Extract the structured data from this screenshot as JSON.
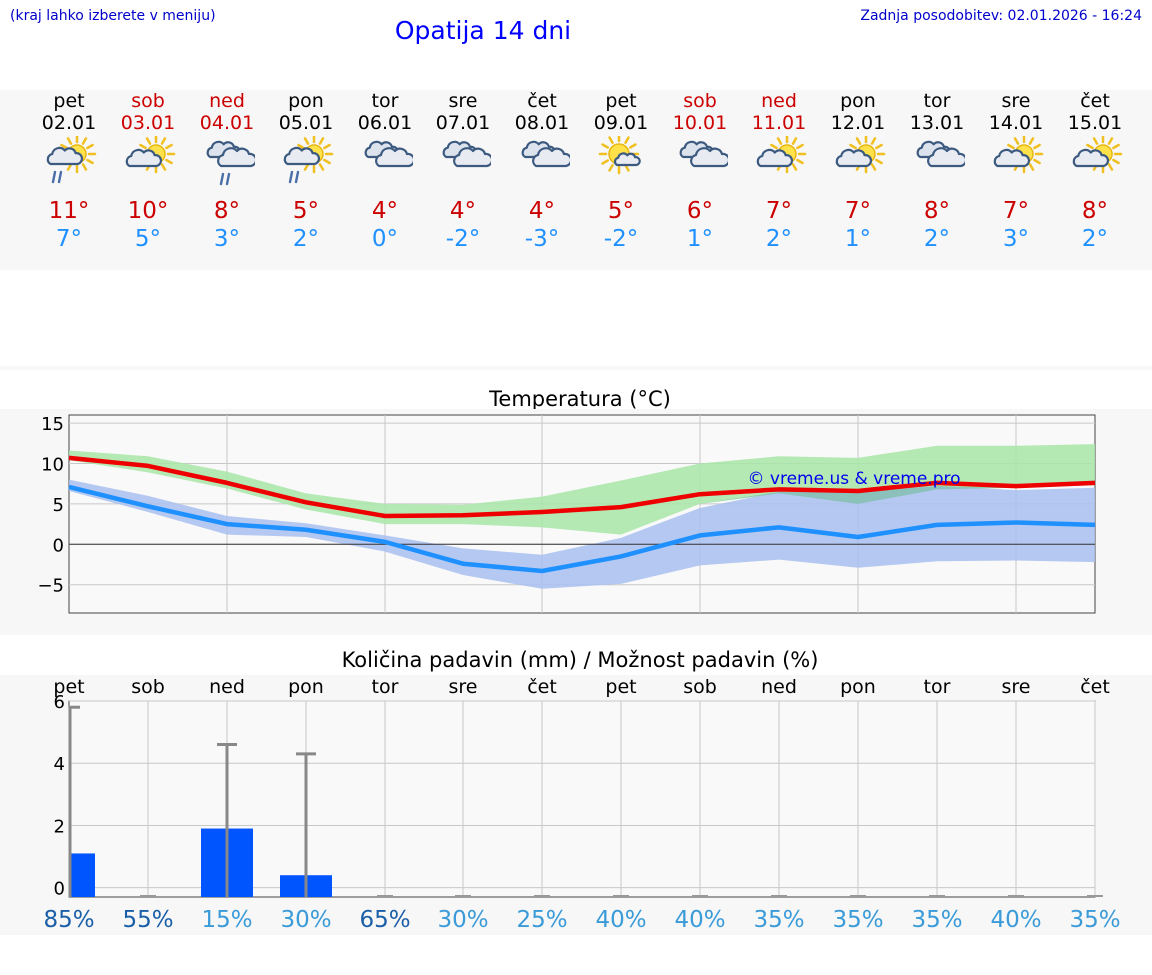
{
  "header": {
    "hint": "(kraj lahko izberete v meniju)",
    "title": "Opatija 14 dni",
    "updated": "Zadnja posodobitev: 02.01.2026 - 16:24"
  },
  "days": [
    {
      "name": "pet",
      "date": "02.01",
      "weekend": false,
      "icon": "partly-sunny-rain-icon",
      "max": "11°",
      "min": "7°"
    },
    {
      "name": "sob",
      "date": "03.01",
      "weekend": true,
      "icon": "partly-sunny-icon",
      "max": "10°",
      "min": "5°"
    },
    {
      "name": "ned",
      "date": "04.01",
      "weekend": true,
      "icon": "cloudy-rain-icon",
      "max": "8°",
      "min": "3°"
    },
    {
      "name": "pon",
      "date": "05.01",
      "weekend": false,
      "icon": "partly-sunny-rain-icon",
      "max": "5°",
      "min": "2°"
    },
    {
      "name": "tor",
      "date": "06.01",
      "weekend": false,
      "icon": "cloudy-icon",
      "max": "4°",
      "min": "0°"
    },
    {
      "name": "sre",
      "date": "07.01",
      "weekend": false,
      "icon": "cloudy-icon",
      "max": "4°",
      "min": "-2°"
    },
    {
      "name": "čet",
      "date": "08.01",
      "weekend": false,
      "icon": "cloudy-icon",
      "max": "4°",
      "min": "-3°"
    },
    {
      "name": "pet",
      "date": "09.01",
      "weekend": false,
      "icon": "mostly-sunny-icon",
      "max": "5°",
      "min": "-2°"
    },
    {
      "name": "sob",
      "date": "10.01",
      "weekend": true,
      "icon": "cloudy-icon",
      "max": "6°",
      "min": "1°"
    },
    {
      "name": "ned",
      "date": "11.01",
      "weekend": true,
      "icon": "partly-sunny-icon",
      "max": "7°",
      "min": "2°"
    },
    {
      "name": "pon",
      "date": "12.01",
      "weekend": false,
      "icon": "partly-sunny-icon",
      "max": "7°",
      "min": "1°"
    },
    {
      "name": "tor",
      "date": "13.01",
      "weekend": false,
      "icon": "cloudy-icon",
      "max": "8°",
      "min": "2°"
    },
    {
      "name": "sre",
      "date": "14.01",
      "weekend": false,
      "icon": "partly-sunny-icon",
      "max": "7°",
      "min": "3°"
    },
    {
      "name": "čet",
      "date": "15.01",
      "weekend": false,
      "icon": "partly-sunny-icon",
      "max": "8°",
      "min": "2°"
    }
  ],
  "colors": {
    "max_line": "#ee0000",
    "min_line": "#1e90ff",
    "max_band": "#a8e6a8",
    "min_band": "#a8c0f0",
    "overlap_band": "#7fbfa8",
    "bar": "#0055ff",
    "err": "#888888",
    "weekend": "#cc0000",
    "pct_dark": "#1a5fa8",
    "pct_light": "#3a9bd8"
  },
  "chart_data": [
    {
      "type": "line",
      "title": "Temperatura (°C)",
      "watermark": "© vreme.us & vreme.pro",
      "ylim": [
        -8.5,
        16
      ],
      "yticks": [
        15,
        10,
        5,
        0,
        -5
      ],
      "ytick_labels": [
        "15",
        "10",
        "5",
        "0",
        "−5"
      ],
      "series": [
        {
          "name": "max",
          "values": [
            10.7,
            9.7,
            7.6,
            5.2,
            3.5,
            3.6,
            4.0,
            4.6,
            6.2,
            6.8,
            6.6,
            7.6,
            7.2,
            7.6
          ]
        },
        {
          "name": "min",
          "values": [
            7.1,
            4.7,
            2.5,
            1.8,
            0.3,
            -2.4,
            -3.3,
            -1.5,
            1.1,
            2.1,
            0.9,
            2.4,
            2.7,
            2.4
          ]
        },
        {
          "name": "max_band_upper",
          "values": [
            11.6,
            10.9,
            9.0,
            6.3,
            5.0,
            4.9,
            5.9,
            7.9,
            10.0,
            10.9,
            10.7,
            12.2,
            12.2,
            12.4
          ]
        },
        {
          "name": "max_band_lower",
          "values": [
            10.4,
            8.9,
            6.9,
            4.3,
            2.5,
            2.5,
            2.1,
            1.2,
            5.0,
            6.3,
            5.0,
            6.8,
            7.0,
            7.3
          ]
        },
        {
          "name": "min_band_upper",
          "values": [
            8.0,
            6.0,
            3.5,
            2.6,
            1.1,
            -0.5,
            -1.3,
            0.8,
            4.5,
            6.5,
            6.5,
            7.2,
            6.7,
            7.0
          ]
        },
        {
          "name": "min_band_lower",
          "values": [
            6.6,
            4.0,
            1.2,
            0.9,
            -0.9,
            -3.8,
            -5.5,
            -4.9,
            -2.6,
            -1.9,
            -2.9,
            -2.1,
            -2.0,
            -2.2
          ]
        }
      ]
    },
    {
      "type": "bar",
      "title": "Količina padavin (mm) / Možnost padavin (%)",
      "categories": [
        "pet",
        "sob",
        "ned",
        "pon",
        "tor",
        "sre",
        "čet",
        "pet",
        "sob",
        "ned",
        "pon",
        "tor",
        "sre",
        "čet"
      ],
      "ylim": [
        -0.3,
        6
      ],
      "yticks": [
        6,
        4,
        2,
        0
      ],
      "values": [
        1.1,
        0,
        1.9,
        0.4,
        0,
        0,
        0,
        0,
        0,
        0,
        0,
        0,
        0,
        0
      ],
      "error_max": [
        5.8,
        0,
        4.6,
        4.3,
        0,
        0,
        0,
        0,
        0,
        0,
        0,
        0,
        0,
        0
      ],
      "probability": [
        "85%",
        "55%",
        "15%",
        "30%",
        "65%",
        "30%",
        "25%",
        "40%",
        "40%",
        "35%",
        "35%",
        "35%",
        "40%",
        "35%"
      ],
      "probability_dark": [
        true,
        true,
        false,
        false,
        true,
        false,
        false,
        false,
        false,
        false,
        false,
        false,
        false,
        false
      ]
    }
  ]
}
